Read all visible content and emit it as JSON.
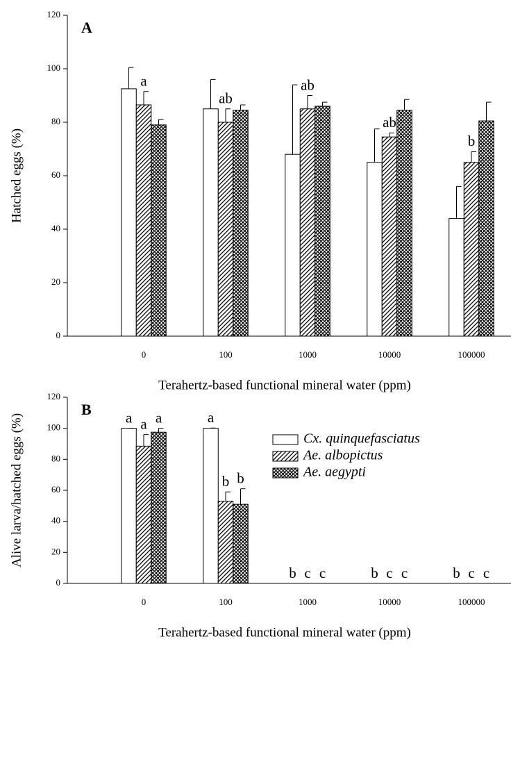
{
  "chart_data": [
    {
      "type": "bar",
      "title": "A",
      "ylabel": "Hatched eggs (%)",
      "xlabel": "Terahertz-based functional mineral water (ppm)",
      "categories": [
        "0",
        "100",
        "1000",
        "10000",
        "100000"
      ],
      "ylim": [
        0,
        120
      ],
      "yticks": [
        0,
        20,
        40,
        60,
        80,
        100,
        120
      ],
      "legend": false,
      "series": [
        {
          "name": "Cx. quinquefasciatus",
          "pattern": "none",
          "values": [
            92.5,
            85,
            68,
            65,
            44
          ],
          "errors": [
            8,
            11,
            26,
            12.5,
            12
          ]
        },
        {
          "name": "Ae. albopictus",
          "pattern": "diagonal",
          "values": [
            86.5,
            80,
            85,
            74.5,
            65
          ],
          "errors": [
            5,
            5,
            5,
            1.5,
            4
          ],
          "labels": [
            "a",
            "ab",
            "ab",
            "ab",
            "b"
          ]
        },
        {
          "name": "Ae. aegypti",
          "pattern": "cross",
          "values": [
            79,
            84.5,
            86,
            84.5,
            80.5
          ],
          "errors": [
            2,
            2,
            1.5,
            4,
            7
          ]
        }
      ]
    },
    {
      "type": "bar",
      "title": "B",
      "ylabel": "Alive larva/hatched eggs (%)",
      "xlabel": "Terahertz-based functional mineral water (ppm)",
      "categories": [
        "0",
        "100",
        "1000",
        "10000",
        "100000"
      ],
      "ylim": [
        0,
        120
      ],
      "yticks": [
        0,
        20,
        40,
        60,
        80,
        100,
        120
      ],
      "legend": true,
      "series": [
        {
          "name": "Cx. quinquefasciatus",
          "pattern": "none",
          "values": [
            100,
            100,
            0,
            0,
            0
          ],
          "errors": [
            0,
            0.2,
            0,
            0,
            0
          ],
          "labels": [
            "a",
            "a",
            "b",
            "b",
            "b"
          ]
        },
        {
          "name": "Ae. albopictus",
          "pattern": "diagonal",
          "values": [
            88.5,
            53,
            0,
            0,
            0
          ],
          "errors": [
            7.5,
            6,
            0,
            0,
            0
          ],
          "labels": [
            "a",
            "b",
            "c",
            "c",
            "c"
          ]
        },
        {
          "name": "Ae. aegypti",
          "pattern": "cross",
          "values": [
            97.5,
            51,
            0,
            0,
            0
          ],
          "errors": [
            2.5,
            10,
            0,
            0,
            0
          ],
          "labels": [
            "a",
            "b",
            "c",
            "c",
            "c"
          ]
        }
      ]
    }
  ]
}
